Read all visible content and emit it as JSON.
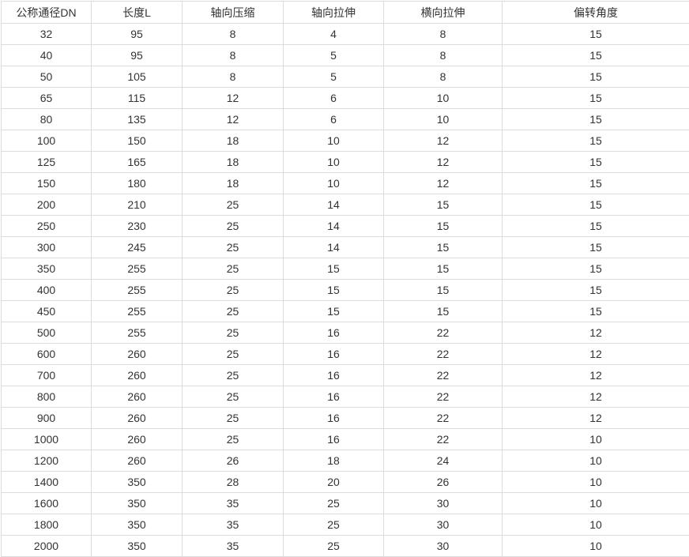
{
  "table": {
    "columns": [
      "公称通径DN",
      "长度L",
      "轴向压缩",
      "轴向拉伸",
      "横向拉伸",
      "偏转角度"
    ],
    "rows": [
      [
        "32",
        "95",
        "8",
        "4",
        "8",
        "15"
      ],
      [
        "40",
        "95",
        "8",
        "5",
        "8",
        "15"
      ],
      [
        "50",
        "105",
        "8",
        "5",
        "8",
        "15"
      ],
      [
        "65",
        "115",
        "12",
        "6",
        "10",
        "15"
      ],
      [
        "80",
        "135",
        "12",
        "6",
        "10",
        "15"
      ],
      [
        "100",
        "150",
        "18",
        "10",
        "12",
        "15"
      ],
      [
        "125",
        "165",
        "18",
        "10",
        "12",
        "15"
      ],
      [
        "150",
        "180",
        "18",
        "10",
        "12",
        "15"
      ],
      [
        "200",
        "210",
        "25",
        "14",
        "15",
        "15"
      ],
      [
        "250",
        "230",
        "25",
        "14",
        "15",
        "15"
      ],
      [
        "300",
        "245",
        "25",
        "14",
        "15",
        "15"
      ],
      [
        "350",
        "255",
        "25",
        "15",
        "15",
        "15"
      ],
      [
        "400",
        "255",
        "25",
        "15",
        "15",
        "15"
      ],
      [
        "450",
        "255",
        "25",
        "15",
        "15",
        "15"
      ],
      [
        "500",
        "255",
        "25",
        "16",
        "22",
        "12"
      ],
      [
        "600",
        "260",
        "25",
        "16",
        "22",
        "12"
      ],
      [
        "700",
        "260",
        "25",
        "16",
        "22",
        "12"
      ],
      [
        "800",
        "260",
        "25",
        "16",
        "22",
        "12"
      ],
      [
        "900",
        "260",
        "25",
        "16",
        "22",
        "12"
      ],
      [
        "1000",
        "260",
        "25",
        "16",
        "22",
        "10"
      ],
      [
        "1200",
        "260",
        "26",
        "18",
        "24",
        "10"
      ],
      [
        "1400",
        "350",
        "28",
        "20",
        "26",
        "10"
      ],
      [
        "1600",
        "350",
        "35",
        "25",
        "30",
        "10"
      ],
      [
        "1800",
        "350",
        "35",
        "25",
        "30",
        "10"
      ],
      [
        "2000",
        "350",
        "35",
        "25",
        "30",
        "10"
      ]
    ]
  },
  "colors": {
    "border": "#dcdcdc",
    "text": "#333333",
    "background": "#ffffff"
  }
}
